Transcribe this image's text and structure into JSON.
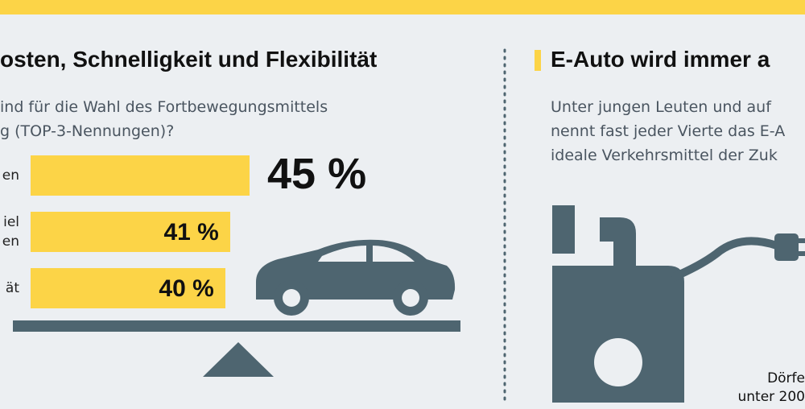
{
  "left_panel": {
    "title": "osten, Schnelligkeit und Flexibilität",
    "question": [
      "ind für die Wahl des Fortbewegungsmittels",
      "g (TOP-3-Nennungen)?"
    ]
  },
  "chart_data": {
    "type": "bar",
    "orientation": "horizontal",
    "categories": [
      "en",
      "iel\nen",
      "ät"
    ],
    "values": [
      45,
      41,
      40
    ],
    "value_labels": [
      "45 %",
      "41 %",
      "40 %"
    ],
    "color": "#fcd447"
  },
  "right_panel": {
    "title": "E-Auto wird immer a",
    "text": [
      "Unter jungen Leuten und auf",
      "nennt fast jeder Vierte das E-A",
      "ideale Verkehrsmittel der Zuk"
    ],
    "footnote": [
      "Dörfe",
      "unter 200"
    ]
  }
}
